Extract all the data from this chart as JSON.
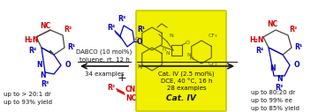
{
  "bg_color": "#ffffff",
  "yellow_box_color": "#f0f000",
  "yellow_box_border": "#c8c800",
  "left_yield_line1": "up to > 20:1 dr",
  "left_yield_line2": "up to 93% yield",
  "arrow_left_label1": "DABCO (10 mol%)",
  "arrow_left_label2": "toluene, rt, 12 h",
  "arrow_left_label3": "34 examples",
  "arrow_right_label1": "Cat. IV (2.5 mol%)",
  "arrow_right_label2": "DCE, 40 °C, 16 h",
  "arrow_right_label3": "28 examples",
  "cat_label": "Cat. IV",
  "right_yield_line1": "up to 80:20 dr",
  "right_yield_line2": "up to 99% ee",
  "right_yield_line3": "up to 85% yield",
  "red_color": "#cc0000",
  "blue_color": "#0000bb",
  "black_color": "#111111",
  "olive_color": "#5a5a00",
  "gray_color": "#444444"
}
